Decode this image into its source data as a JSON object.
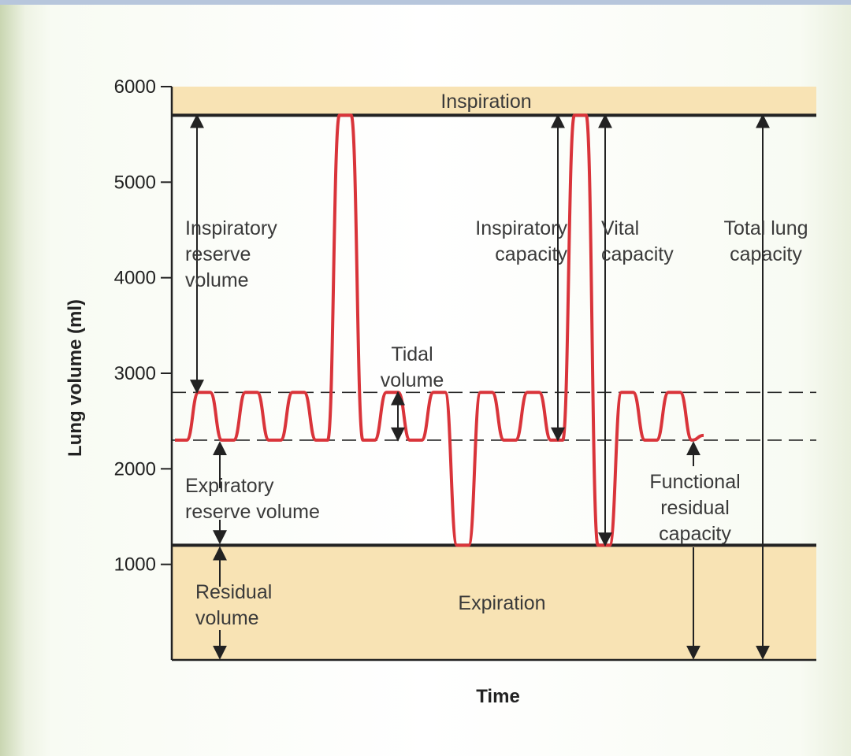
{
  "chart_data": {
    "type": "line",
    "title": "",
    "xlabel": "Time",
    "ylabel": "Lung volume (ml)",
    "ylim": [
      0,
      6000
    ],
    "yticks": [
      1000,
      2000,
      3000,
      4000,
      5000,
      6000
    ],
    "grid": false,
    "series": [
      {
        "values": [
          [
            0,
            2300
          ],
          [
            1,
            2300
          ],
          [
            2,
            2800
          ],
          [
            3,
            2800
          ],
          [
            4,
            2300
          ],
          [
            5,
            2300
          ],
          [
            6,
            2800
          ],
          [
            7,
            2800
          ],
          [
            8,
            2300
          ],
          [
            9,
            2300
          ],
          [
            10,
            2800
          ],
          [
            11,
            2800
          ],
          [
            12,
            2300
          ],
          [
            13,
            2300
          ],
          [
            14,
            5700
          ],
          [
            15,
            5700
          ],
          [
            16,
            2300
          ],
          [
            17,
            2300
          ],
          [
            18,
            2800
          ],
          [
            19,
            2800
          ],
          [
            20,
            2300
          ],
          [
            21,
            2300
          ],
          [
            22,
            2800
          ],
          [
            23,
            2800
          ],
          [
            24,
            1200
          ],
          [
            25,
            1200
          ],
          [
            26,
            2800
          ],
          [
            27,
            2800
          ],
          [
            28,
            2300
          ],
          [
            29,
            2300
          ],
          [
            30,
            2800
          ],
          [
            31,
            2800
          ],
          [
            32,
            2300
          ],
          [
            33,
            2300
          ],
          [
            34,
            5700
          ],
          [
            35,
            5700
          ],
          [
            36,
            1200
          ],
          [
            37,
            1200
          ],
          [
            38,
            2800
          ],
          [
            39,
            2800
          ],
          [
            40,
            2300
          ],
          [
            41,
            2300
          ],
          [
            42,
            2800
          ],
          [
            43,
            2800
          ],
          [
            44,
            2300
          ],
          [
            45,
            2350
          ]
        ]
      }
    ],
    "reference_lines": [
      {
        "y": 5700,
        "style": "solid"
      },
      {
        "y": 2800,
        "style": "dashed"
      },
      {
        "y": 2300,
        "style": "dashed"
      },
      {
        "y": 1200,
        "style": "solid"
      }
    ],
    "bands": [
      {
        "label": "Inspiration",
        "y0": 5700,
        "y1": 6000,
        "color": "#f8e3b4"
      },
      {
        "label": "Expiration",
        "y0": 0,
        "y1": 1200,
        "color": "#f8e3b4"
      }
    ],
    "annotations": [
      {
        "label": "Inspiratory\nreserve\nvolume"
      },
      {
        "label": "Tidal\nvolume"
      },
      {
        "label": "Inspiratory\ncapacity"
      },
      {
        "label": "Vital\ncapacity"
      },
      {
        "label": "Total lung\ncapacity"
      },
      {
        "label": "Expiratory\nreserve volume"
      },
      {
        "label": "Functional\nresidual\ncapacity"
      },
      {
        "label": "Residual\nvolume"
      }
    ],
    "line_color": "#d9343a"
  }
}
